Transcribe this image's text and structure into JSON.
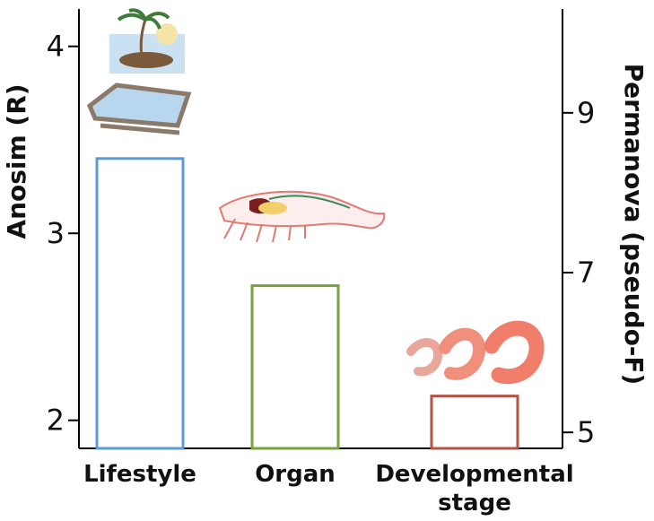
{
  "chart_data": {
    "type": "bar",
    "categories": [
      {
        "lines": [
          "Lifestyle"
        ]
      },
      {
        "lines": [
          "Organ"
        ]
      },
      {
        "lines": [
          "Developmental",
          "stage"
        ]
      }
    ],
    "values": [
      3.4,
      2.72,
      2.13
    ],
    "colors": [
      "#5b9bd5",
      "#77a03f",
      "#b75248"
    ],
    "left_axis": {
      "label": "Anosim (R)",
      "ticks": [
        2,
        3,
        4
      ],
      "range": [
        1.85,
        4.2
      ]
    },
    "right_axis": {
      "label": "Permanova (pseudo-F)",
      "ticks": [
        5,
        7,
        9
      ],
      "range": [
        4.8,
        10.3
      ]
    },
    "grid": false,
    "icons": [
      "island-icon",
      "aquaculture-pond-icon",
      "shrimp-organ-icon",
      "shrimp-stages-icon"
    ]
  }
}
